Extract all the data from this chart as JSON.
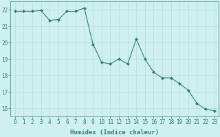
{
  "x": [
    0,
    1,
    2,
    3,
    4,
    5,
    6,
    7,
    8,
    9,
    10,
    11,
    12,
    13,
    14,
    15,
    16,
    17,
    18,
    19,
    20,
    21,
    22,
    23
  ],
  "y": [
    21.9,
    21.9,
    21.9,
    21.95,
    21.35,
    21.4,
    21.9,
    21.9,
    22.1,
    19.9,
    18.8,
    18.7,
    19.0,
    18.7,
    20.2,
    19.0,
    18.2,
    17.85,
    17.85,
    17.5,
    17.1,
    16.3,
    15.95,
    15.85
  ],
  "line_color": "#2e7d6e",
  "marker": "D",
  "marker_size": 2.0,
  "background_color": "#cff0ee",
  "grid_color": "#b8e0dc",
  "xlabel": "Humidex (Indice chaleur)",
  "ylim": [
    15.5,
    22.5
  ],
  "xlim": [
    -0.5,
    23.5
  ],
  "yticks": [
    16,
    17,
    18,
    19,
    20,
    21,
    22
  ],
  "xticks": [
    0,
    1,
    2,
    3,
    4,
    5,
    6,
    7,
    8,
    9,
    10,
    11,
    12,
    13,
    14,
    15,
    16,
    17,
    18,
    19,
    20,
    21,
    22,
    23
  ],
  "tick_color": "#2e7d6e",
  "label_color": "#2e7d6e",
  "tick_fontsize": 5.5,
  "xlabel_fontsize": 6.5
}
